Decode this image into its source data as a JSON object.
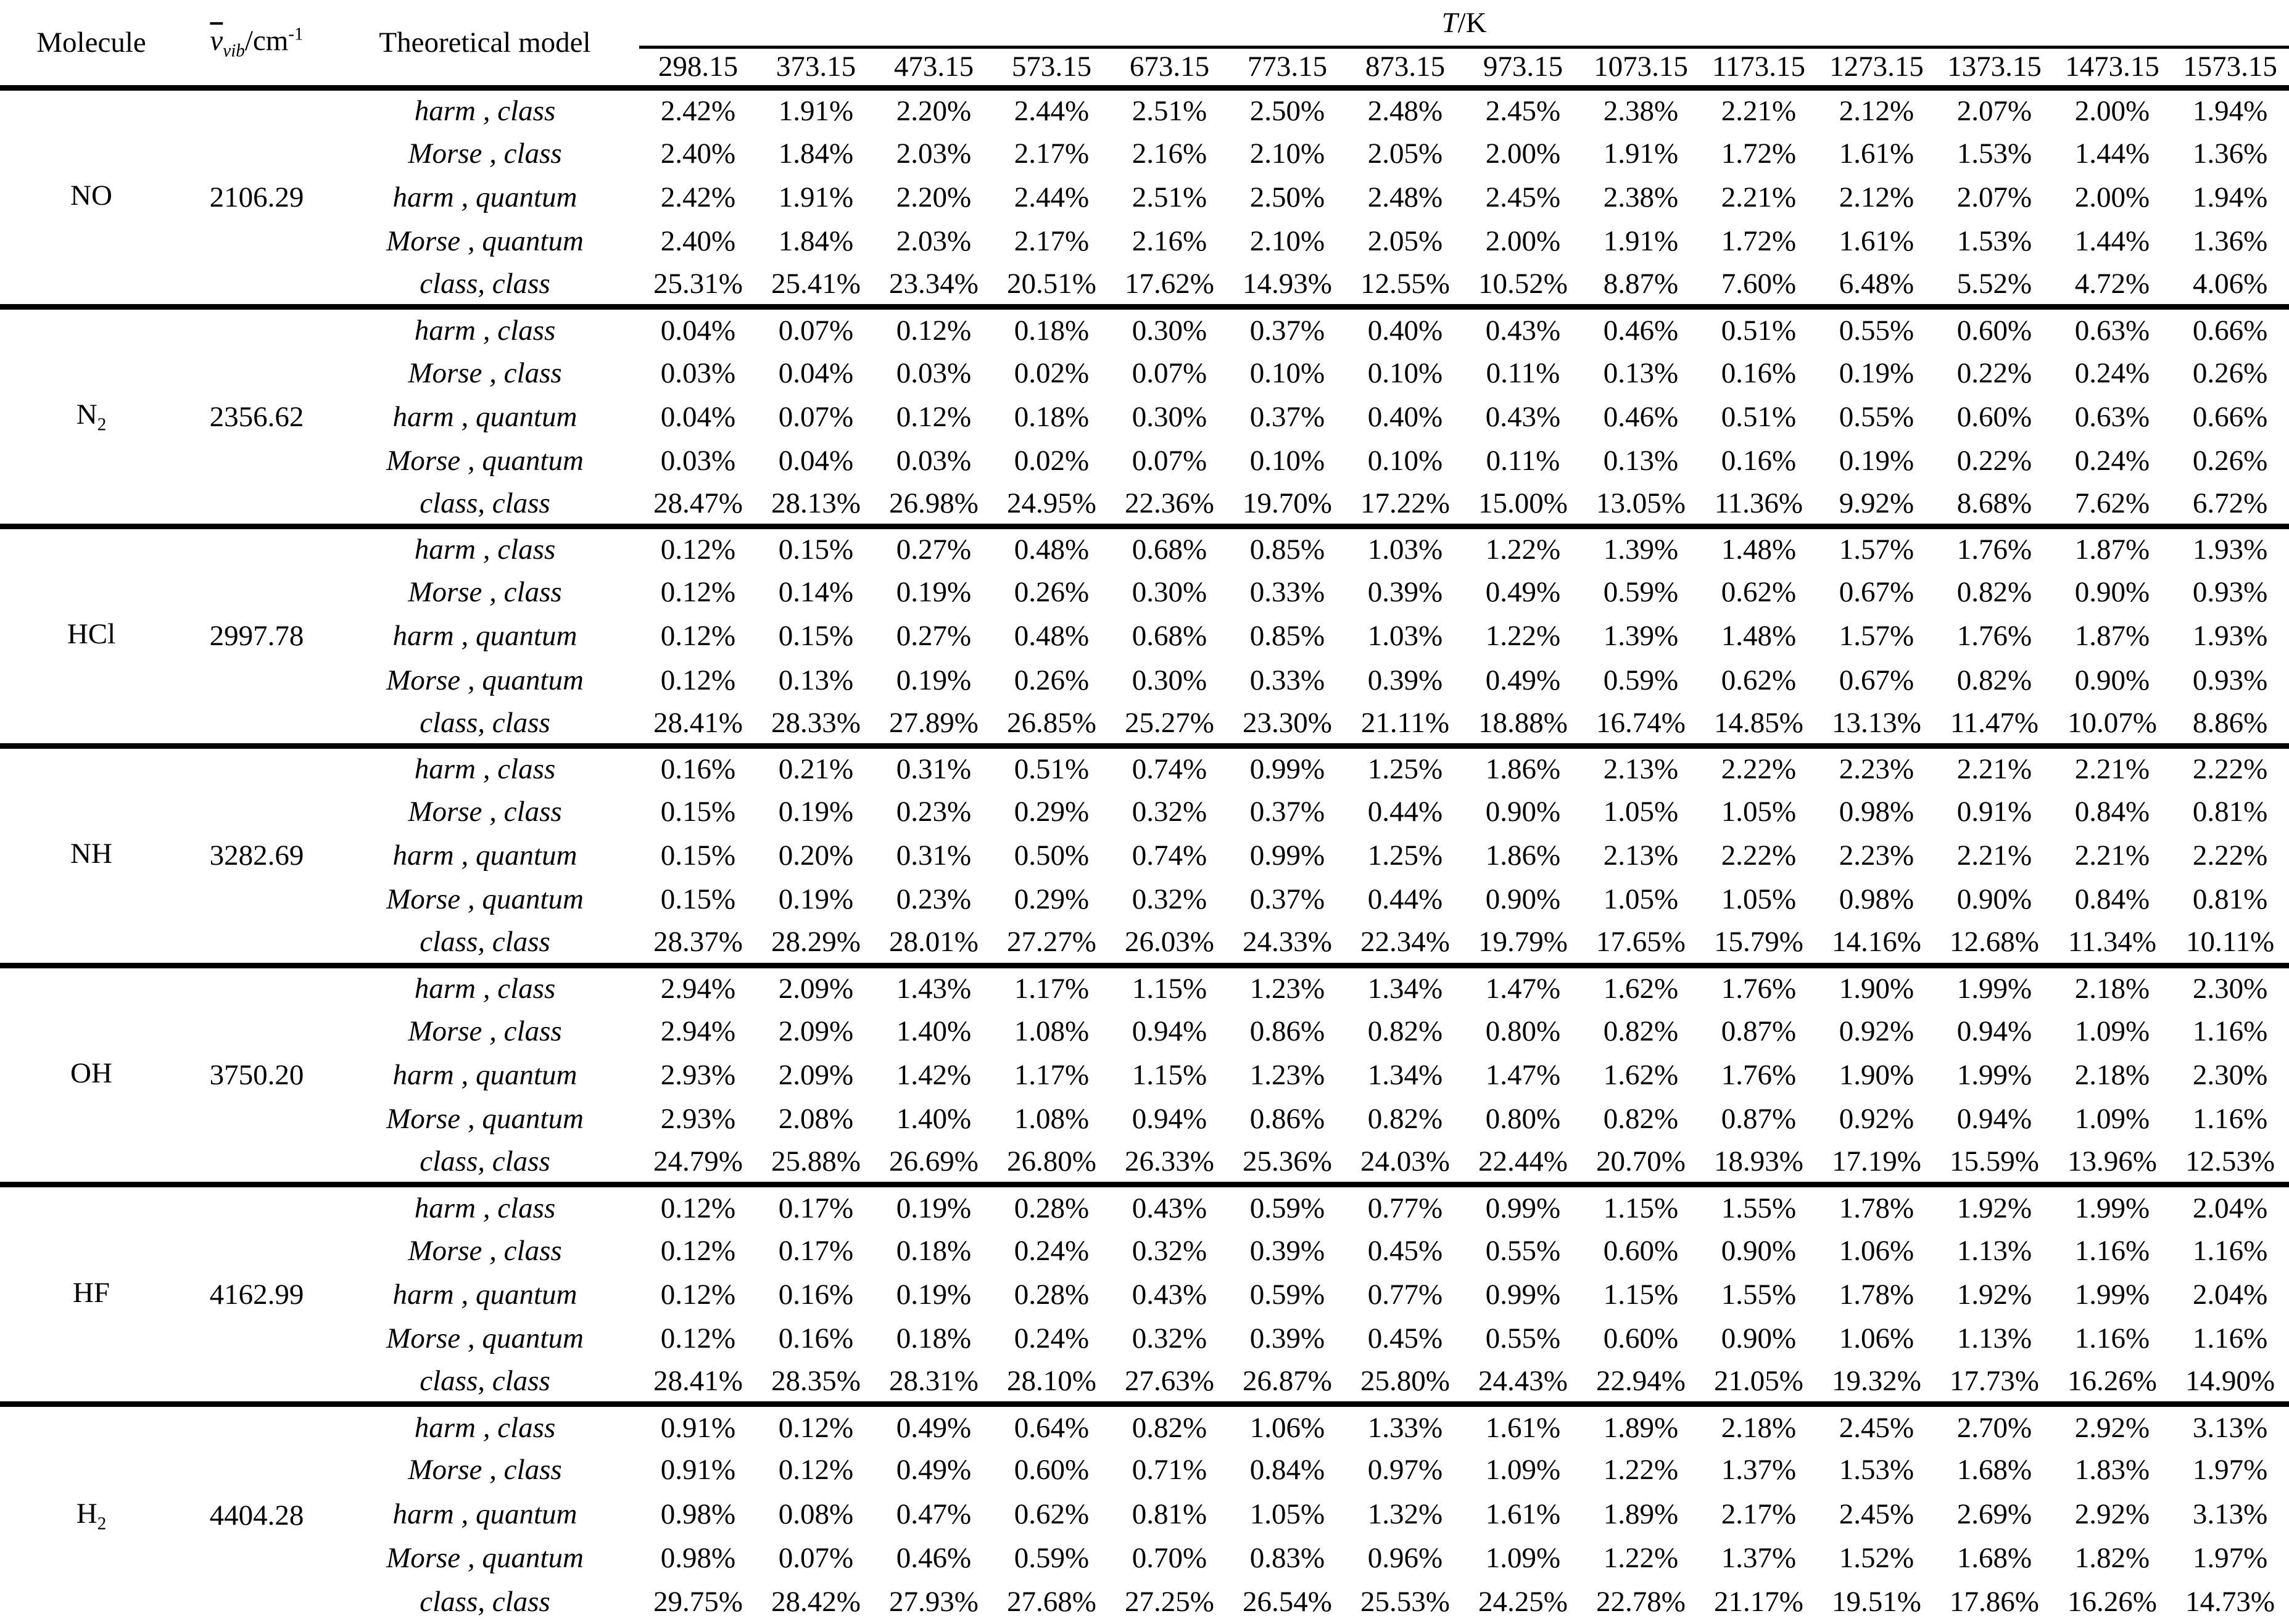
{
  "header": {
    "molecule": "Molecule",
    "freq_symbol": "v",
    "freq_sub": "vib",
    "freq_unit": "/cm",
    "freq_sup": "-1",
    "model": "Theoretical model",
    "temp_symbol": "T",
    "temp_unit": "/K",
    "temps": [
      "298.15",
      "373.15",
      "473.15",
      "573.15",
      "673.15",
      "773.15",
      "873.15",
      "973.15",
      "1073.15",
      "1173.15",
      "1273.15",
      "1373.15",
      "1473.15",
      "1573.15"
    ]
  },
  "model_labels": [
    "harm , class",
    "Morse , class",
    "harm , quantum",
    "Morse , quantum",
    "class, class"
  ],
  "molecules": [
    {
      "name": "NO",
      "sub": "",
      "freq": "2106.29",
      "rows": [
        [
          "2.42%",
          "1.91%",
          "2.20%",
          "2.44%",
          "2.51%",
          "2.50%",
          "2.48%",
          "2.45%",
          "2.38%",
          "2.21%",
          "2.12%",
          "2.07%",
          "2.00%",
          "1.94%"
        ],
        [
          "2.40%",
          "1.84%",
          "2.03%",
          "2.17%",
          "2.16%",
          "2.10%",
          "2.05%",
          "2.00%",
          "1.91%",
          "1.72%",
          "1.61%",
          "1.53%",
          "1.44%",
          "1.36%"
        ],
        [
          "2.42%",
          "1.91%",
          "2.20%",
          "2.44%",
          "2.51%",
          "2.50%",
          "2.48%",
          "2.45%",
          "2.38%",
          "2.21%",
          "2.12%",
          "2.07%",
          "2.00%",
          "1.94%"
        ],
        [
          "2.40%",
          "1.84%",
          "2.03%",
          "2.17%",
          "2.16%",
          "2.10%",
          "2.05%",
          "2.00%",
          "1.91%",
          "1.72%",
          "1.61%",
          "1.53%",
          "1.44%",
          "1.36%"
        ],
        [
          "25.31%",
          "25.41%",
          "23.34%",
          "20.51%",
          "17.62%",
          "14.93%",
          "12.55%",
          "10.52%",
          "8.87%",
          "7.60%",
          "6.48%",
          "5.52%",
          "4.72%",
          "4.06%"
        ]
      ]
    },
    {
      "name": "N",
      "sub": "2",
      "freq": "2356.62",
      "rows": [
        [
          "0.04%",
          "0.07%",
          "0.12%",
          "0.18%",
          "0.30%",
          "0.37%",
          "0.40%",
          "0.43%",
          "0.46%",
          "0.51%",
          "0.55%",
          "0.60%",
          "0.63%",
          "0.66%"
        ],
        [
          "0.03%",
          "0.04%",
          "0.03%",
          "0.02%",
          "0.07%",
          "0.10%",
          "0.10%",
          "0.11%",
          "0.13%",
          "0.16%",
          "0.19%",
          "0.22%",
          "0.24%",
          "0.26%"
        ],
        [
          "0.04%",
          "0.07%",
          "0.12%",
          "0.18%",
          "0.30%",
          "0.37%",
          "0.40%",
          "0.43%",
          "0.46%",
          "0.51%",
          "0.55%",
          "0.60%",
          "0.63%",
          "0.66%"
        ],
        [
          "0.03%",
          "0.04%",
          "0.03%",
          "0.02%",
          "0.07%",
          "0.10%",
          "0.10%",
          "0.11%",
          "0.13%",
          "0.16%",
          "0.19%",
          "0.22%",
          "0.24%",
          "0.26%"
        ],
        [
          "28.47%",
          "28.13%",
          "26.98%",
          "24.95%",
          "22.36%",
          "19.70%",
          "17.22%",
          "15.00%",
          "13.05%",
          "11.36%",
          "9.92%",
          "8.68%",
          "7.62%",
          "6.72%"
        ]
      ]
    },
    {
      "name": "HCl",
      "sub": "",
      "freq": "2997.78",
      "rows": [
        [
          "0.12%",
          "0.15%",
          "0.27%",
          "0.48%",
          "0.68%",
          "0.85%",
          "1.03%",
          "1.22%",
          "1.39%",
          "1.48%",
          "1.57%",
          "1.76%",
          "1.87%",
          "1.93%"
        ],
        [
          "0.12%",
          "0.14%",
          "0.19%",
          "0.26%",
          "0.30%",
          "0.33%",
          "0.39%",
          "0.49%",
          "0.59%",
          "0.62%",
          "0.67%",
          "0.82%",
          "0.90%",
          "0.93%"
        ],
        [
          "0.12%",
          "0.15%",
          "0.27%",
          "0.48%",
          "0.68%",
          "0.85%",
          "1.03%",
          "1.22%",
          "1.39%",
          "1.48%",
          "1.57%",
          "1.76%",
          "1.87%",
          "1.93%"
        ],
        [
          "0.12%",
          "0.13%",
          "0.19%",
          "0.26%",
          "0.30%",
          "0.33%",
          "0.39%",
          "0.49%",
          "0.59%",
          "0.62%",
          "0.67%",
          "0.82%",
          "0.90%",
          "0.93%"
        ],
        [
          "28.41%",
          "28.33%",
          "27.89%",
          "26.85%",
          "25.27%",
          "23.30%",
          "21.11%",
          "18.88%",
          "16.74%",
          "14.85%",
          "13.13%",
          "11.47%",
          "10.07%",
          "8.86%"
        ]
      ]
    },
    {
      "name": "NH",
      "sub": "",
      "freq": "3282.69",
      "rows": [
        [
          "0.16%",
          "0.21%",
          "0.31%",
          "0.51%",
          "0.74%",
          "0.99%",
          "1.25%",
          "1.86%",
          "2.13%",
          "2.22%",
          "2.23%",
          "2.21%",
          "2.21%",
          "2.22%"
        ],
        [
          "0.15%",
          "0.19%",
          "0.23%",
          "0.29%",
          "0.32%",
          "0.37%",
          "0.44%",
          "0.90%",
          "1.05%",
          "1.05%",
          "0.98%",
          "0.91%",
          "0.84%",
          "0.81%"
        ],
        [
          "0.15%",
          "0.20%",
          "0.31%",
          "0.50%",
          "0.74%",
          "0.99%",
          "1.25%",
          "1.86%",
          "2.13%",
          "2.22%",
          "2.23%",
          "2.21%",
          "2.21%",
          "2.22%"
        ],
        [
          "0.15%",
          "0.19%",
          "0.23%",
          "0.29%",
          "0.32%",
          "0.37%",
          "0.44%",
          "0.90%",
          "1.05%",
          "1.05%",
          "0.98%",
          "0.90%",
          "0.84%",
          "0.81%"
        ],
        [
          "28.37%",
          "28.29%",
          "28.01%",
          "27.27%",
          "26.03%",
          "24.33%",
          "22.34%",
          "19.79%",
          "17.65%",
          "15.79%",
          "14.16%",
          "12.68%",
          "11.34%",
          "10.11%"
        ]
      ]
    },
    {
      "name": "OH",
      "sub": "",
      "freq": "3750.20",
      "rows": [
        [
          "2.94%",
          "2.09%",
          "1.43%",
          "1.17%",
          "1.15%",
          "1.23%",
          "1.34%",
          "1.47%",
          "1.62%",
          "1.76%",
          "1.90%",
          "1.99%",
          "2.18%",
          "2.30%"
        ],
        [
          "2.94%",
          "2.09%",
          "1.40%",
          "1.08%",
          "0.94%",
          "0.86%",
          "0.82%",
          "0.80%",
          "0.82%",
          "0.87%",
          "0.92%",
          "0.94%",
          "1.09%",
          "1.16%"
        ],
        [
          "2.93%",
          "2.09%",
          "1.42%",
          "1.17%",
          "1.15%",
          "1.23%",
          "1.34%",
          "1.47%",
          "1.62%",
          "1.76%",
          "1.90%",
          "1.99%",
          "2.18%",
          "2.30%"
        ],
        [
          "2.93%",
          "2.08%",
          "1.40%",
          "1.08%",
          "0.94%",
          "0.86%",
          "0.82%",
          "0.80%",
          "0.82%",
          "0.87%",
          "0.92%",
          "0.94%",
          "1.09%",
          "1.16%"
        ],
        [
          "24.79%",
          "25.88%",
          "26.69%",
          "26.80%",
          "26.33%",
          "25.36%",
          "24.03%",
          "22.44%",
          "20.70%",
          "18.93%",
          "17.19%",
          "15.59%",
          "13.96%",
          "12.53%"
        ]
      ]
    },
    {
      "name": "HF",
      "sub": "",
      "freq": "4162.99",
      "rows": [
        [
          "0.12%",
          "0.17%",
          "0.19%",
          "0.28%",
          "0.43%",
          "0.59%",
          "0.77%",
          "0.99%",
          "1.15%",
          "1.55%",
          "1.78%",
          "1.92%",
          "1.99%",
          "2.04%"
        ],
        [
          "0.12%",
          "0.17%",
          "0.18%",
          "0.24%",
          "0.32%",
          "0.39%",
          "0.45%",
          "0.55%",
          "0.60%",
          "0.90%",
          "1.06%",
          "1.13%",
          "1.16%",
          "1.16%"
        ],
        [
          "0.12%",
          "0.16%",
          "0.19%",
          "0.28%",
          "0.43%",
          "0.59%",
          "0.77%",
          "0.99%",
          "1.15%",
          "1.55%",
          "1.78%",
          "1.92%",
          "1.99%",
          "2.04%"
        ],
        [
          "0.12%",
          "0.16%",
          "0.18%",
          "0.24%",
          "0.32%",
          "0.39%",
          "0.45%",
          "0.55%",
          "0.60%",
          "0.90%",
          "1.06%",
          "1.13%",
          "1.16%",
          "1.16%"
        ],
        [
          "28.41%",
          "28.35%",
          "28.31%",
          "28.10%",
          "27.63%",
          "26.87%",
          "25.80%",
          "24.43%",
          "22.94%",
          "21.05%",
          "19.32%",
          "17.73%",
          "16.26%",
          "14.90%"
        ]
      ]
    },
    {
      "name": "H",
      "sub": "2",
      "freq": "4404.28",
      "rows": [
        [
          "0.91%",
          "0.12%",
          "0.49%",
          "0.64%",
          "0.82%",
          "1.06%",
          "1.33%",
          "1.61%",
          "1.89%",
          "2.18%",
          "2.45%",
          "2.70%",
          "2.92%",
          "3.13%"
        ],
        [
          "0.91%",
          "0.12%",
          "0.49%",
          "0.60%",
          "0.71%",
          "0.84%",
          "0.97%",
          "1.09%",
          "1.22%",
          "1.37%",
          "1.53%",
          "1.68%",
          "1.83%",
          "1.97%"
        ],
        [
          "0.98%",
          "0.08%",
          "0.47%",
          "0.62%",
          "0.81%",
          "1.05%",
          "1.32%",
          "1.61%",
          "1.89%",
          "2.17%",
          "2.45%",
          "2.69%",
          "2.92%",
          "3.13%"
        ],
        [
          "0.98%",
          "0.07%",
          "0.46%",
          "0.59%",
          "0.70%",
          "0.83%",
          "0.96%",
          "1.09%",
          "1.22%",
          "1.37%",
          "1.52%",
          "1.68%",
          "1.82%",
          "1.97%"
        ],
        [
          "29.75%",
          "28.42%",
          "27.93%",
          "27.68%",
          "27.25%",
          "26.54%",
          "25.53%",
          "24.25%",
          "22.78%",
          "21.17%",
          "19.51%",
          "17.86%",
          "16.26%",
          "14.73%"
        ]
      ]
    }
  ]
}
